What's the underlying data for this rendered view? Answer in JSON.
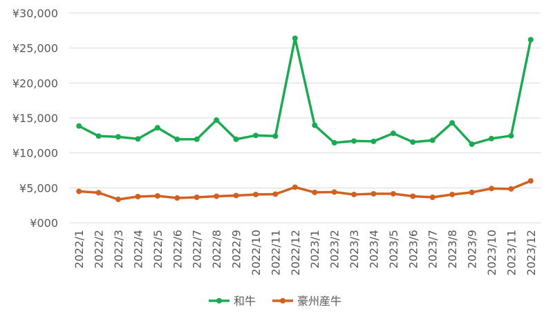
{
  "chart_data": {
    "type": "line",
    "title": "",
    "xlabel": "",
    "ylabel": "",
    "ylim": [
      0,
      30000
    ],
    "yticks": [
      0,
      5000,
      10000,
      15000,
      20000,
      25000,
      30000
    ],
    "ytick_labels": [
      "¥000",
      "¥5,000",
      "¥10,000",
      "¥15,000",
      "¥20,000",
      "¥25,000",
      "¥30,000"
    ],
    "grid": "horizontal",
    "legend": "bottom",
    "categories": [
      "2022/1",
      "2022/2",
      "2022/3",
      "2022/4",
      "2022/5",
      "2022/6",
      "2022/7",
      "2022/8",
      "2022/9",
      "2022/10",
      "2022/11",
      "2022/12",
      "2023/1",
      "2023/2",
      "2023/3",
      "2023/4",
      "2023/5",
      "2023/6",
      "2023/7",
      "2023/8",
      "2023/9",
      "2023/10",
      "2023/11",
      "2023/12"
    ],
    "series": [
      {
        "name": "和牛",
        "color": "#1aab52",
        "values": [
          13850,
          12400,
          12300,
          12000,
          13600,
          11950,
          11950,
          14700,
          11950,
          12500,
          12400,
          26400,
          13950,
          11450,
          11700,
          11650,
          12800,
          11550,
          11800,
          14300,
          11250,
          12050,
          12450,
          26200
        ]
      },
      {
        "name": "豪州産牛",
        "color": "#d2601f",
        "values": [
          4500,
          4300,
          3350,
          3750,
          3850,
          3550,
          3650,
          3800,
          3900,
          4050,
          4100,
          5100,
          4350,
          4400,
          4050,
          4150,
          4150,
          3800,
          3650,
          4050,
          4350,
          4900,
          4850,
          6000
        ]
      }
    ]
  }
}
